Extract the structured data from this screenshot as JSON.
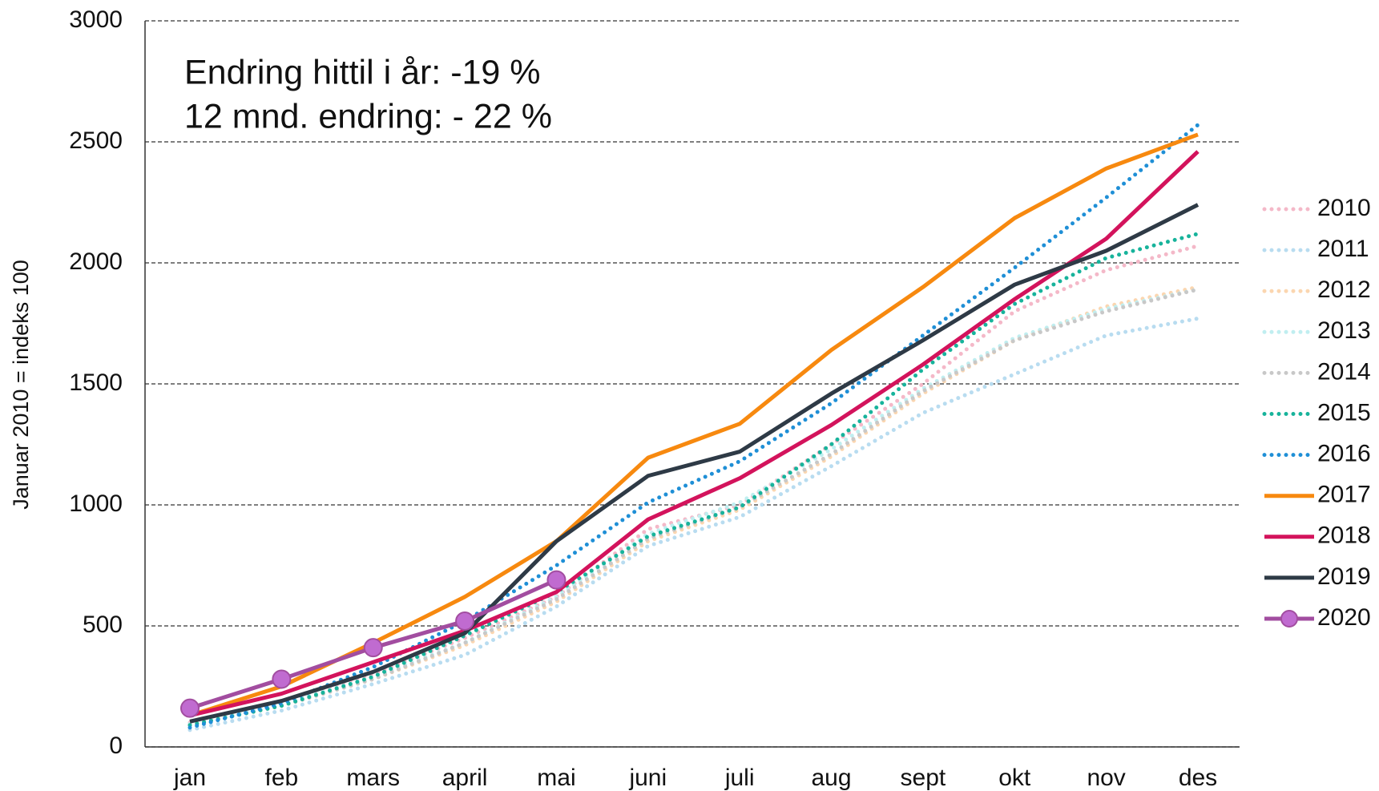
{
  "chart_data": {
    "type": "line",
    "ylabel": "Januar 2010 = indeks 100",
    "annotations": [
      "Endring hittil i år:  -19 %",
      "12 mnd. endring:  - 22 %"
    ],
    "categories": [
      "jan",
      "feb",
      "mars",
      "april",
      "mai",
      "juni",
      "juli",
      "aug",
      "sept",
      "okt",
      "nov",
      "des"
    ],
    "ylim": [
      0,
      3000
    ],
    "yticks": [
      0,
      500,
      1000,
      1500,
      2000,
      2500,
      3000
    ],
    "grid": true,
    "legend": "right",
    "series": [
      {
        "name": "2010",
        "color": "#f4b8c8",
        "style": "dotted",
        "values": [
          100,
          190,
          300,
          450,
          620,
          900,
          1000,
          1250,
          1500,
          1800,
          1970,
          2070
        ]
      },
      {
        "name": "2011",
        "color": "#b8dcf0",
        "style": "dotted",
        "values": [
          70,
          150,
          260,
          380,
          580,
          830,
          950,
          1160,
          1380,
          1540,
          1700,
          1770
        ]
      },
      {
        "name": "2012",
        "color": "#fbd6b0",
        "style": "dotted",
        "values": [
          90,
          170,
          280,
          420,
          600,
          850,
          980,
          1200,
          1460,
          1680,
          1820,
          1900
        ]
      },
      {
        "name": "2013",
        "color": "#c0eef0",
        "style": "dotted",
        "values": [
          95,
          175,
          290,
          430,
          620,
          880,
          1010,
          1230,
          1480,
          1690,
          1810,
          1890
        ]
      },
      {
        "name": "2014",
        "color": "#c8c8c8",
        "style": "dotted",
        "values": [
          90,
          170,
          280,
          430,
          610,
          860,
          990,
          1210,
          1470,
          1680,
          1800,
          1890
        ]
      },
      {
        "name": "2015",
        "color": "#17b39b",
        "style": "dotted",
        "values": [
          90,
          170,
          290,
          460,
          640,
          870,
          990,
          1250,
          1560,
          1830,
          2020,
          2120
        ]
      },
      {
        "name": "2016",
        "color": "#1f8fd6",
        "style": "dotted",
        "values": [
          80,
          180,
          330,
          520,
          750,
          1010,
          1180,
          1420,
          1700,
          1980,
          2270,
          2570
        ]
      },
      {
        "name": "2017",
        "color": "#f7890f",
        "style": "solid",
        "values": [
          130,
          250,
          430,
          620,
          850,
          1195,
          1335,
          1640,
          1900,
          2185,
          2390,
          2530
        ]
      },
      {
        "name": "2018",
        "color": "#d3135c",
        "style": "solid",
        "values": [
          130,
          220,
          350,
          480,
          640,
          940,
          1110,
          1330,
          1580,
          1850,
          2100,
          2460
        ]
      },
      {
        "name": "2019",
        "color": "#2e3a46",
        "style": "solid",
        "values": [
          105,
          190,
          310,
          470,
          850,
          1120,
          1220,
          1460,
          1680,
          1910,
          2050,
          2240
        ]
      },
      {
        "name": "2020",
        "color": "#a24da0",
        "style": "solid",
        "marker": "#c06bd0",
        "values": [
          160,
          280,
          410,
          520,
          690,
          null,
          null,
          null,
          null,
          null,
          null,
          null
        ]
      }
    ]
  }
}
